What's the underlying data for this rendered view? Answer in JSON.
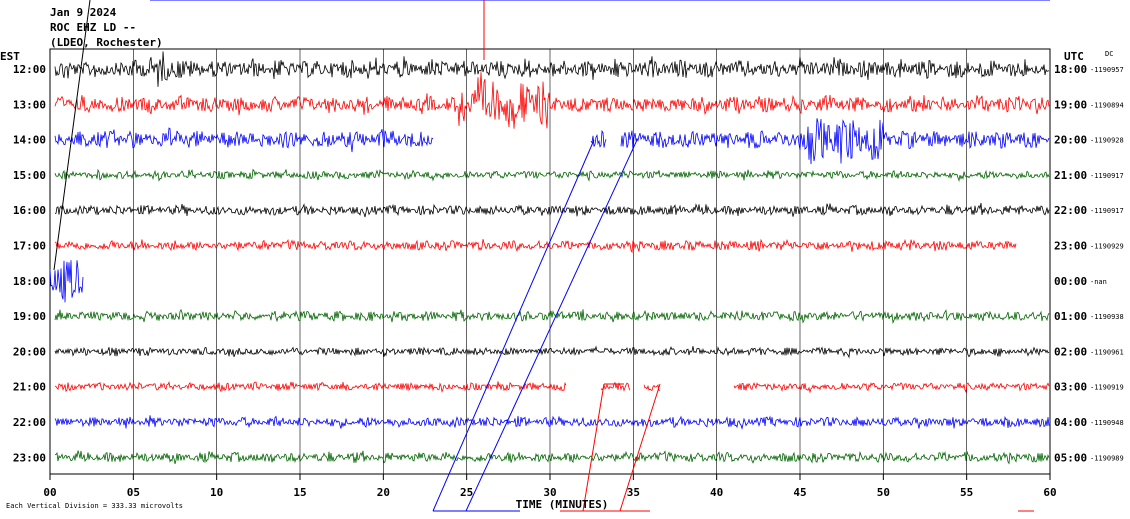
{
  "header": {
    "date": "Jan 9 2024",
    "station": "ROC EHZ LD --",
    "network": "(LDEO, Rochester)"
  },
  "corner": {
    "left_tz": "EST",
    "right_tz": "UTC",
    "dc": "DC"
  },
  "footer": {
    "scale_note": "Each Vertical Division =  333.33 microvolts"
  },
  "chart_data": {
    "type": "line",
    "xlabel": "TIME (MINUTES)",
    "xlim": [
      0,
      60
    ],
    "x_ticks": [
      "00",
      "05",
      "10",
      "15",
      "20",
      "25",
      "30",
      "35",
      "40",
      "45",
      "50",
      "55",
      "60"
    ],
    "rows": [
      {
        "est": "12:00",
        "utc": "18:00",
        "dc": "-1190957",
        "color": "#000000",
        "amp": 9,
        "start": 0.3,
        "end": 60,
        "event": 0
      },
      {
        "est": "13:00",
        "utc": "19:00",
        "dc": "-1190894",
        "color": "#ff0000",
        "amp": 8,
        "start": 0.3,
        "end": 60,
        "event": 1
      },
      {
        "est": "14:00",
        "utc": "20:00",
        "dc": "-1190928",
        "color": "#0000ff",
        "amp": 9,
        "start": 0.3,
        "end": 60,
        "event": 2,
        "gaps": [
          [
            23,
            32.4
          ],
          [
            33.4,
            34.2
          ]
        ]
      },
      {
        "est": "15:00",
        "utc": "21:00",
        "dc": "-1190917",
        "color": "#006400",
        "amp": 4,
        "start": 0.3,
        "end": 60,
        "event": 0
      },
      {
        "est": "16:00",
        "utc": "22:00",
        "dc": "-1190917",
        "color": "#000000",
        "amp": 5,
        "start": 0.3,
        "end": 60,
        "event": 0
      },
      {
        "est": "17:00",
        "utc": "23:00",
        "dc": "-1190929",
        "color": "#ff0000",
        "amp": 5,
        "start": 0.3,
        "end": 58,
        "event": 0
      },
      {
        "est": "18:00",
        "utc": "00:00",
        "dc": "-nan",
        "color": "#0000ff",
        "amp": 22,
        "start": 0,
        "end": 2,
        "event": 0
      },
      {
        "est": "19:00",
        "utc": "01:00",
        "dc": "-1190938",
        "color": "#006400",
        "amp": 5,
        "start": 0.3,
        "end": 60,
        "event": 0
      },
      {
        "est": "20:00",
        "utc": "02:00",
        "dc": "-1190961",
        "color": "#000000",
        "amp": 4,
        "start": 0.3,
        "end": 60,
        "event": 0
      },
      {
        "est": "21:00",
        "utc": "03:00",
        "dc": "-1190919",
        "color": "#ff0000",
        "amp": 4,
        "start": 0.3,
        "end": 60,
        "event": 0,
        "gaps": [
          [
            31,
            33
          ],
          [
            34.8,
            35.6
          ],
          [
            36.6,
            41
          ]
        ]
      },
      {
        "est": "22:00",
        "utc": "04:00",
        "dc": "-1190948",
        "color": "#0000ff",
        "amp": 5,
        "start": 0.3,
        "end": 60,
        "event": 0
      },
      {
        "est": "23:00",
        "utc": "05:00",
        "dc": "-1190989",
        "color": "#006400",
        "amp": 5,
        "start": 0.3,
        "end": 60,
        "event": 0
      }
    ]
  }
}
